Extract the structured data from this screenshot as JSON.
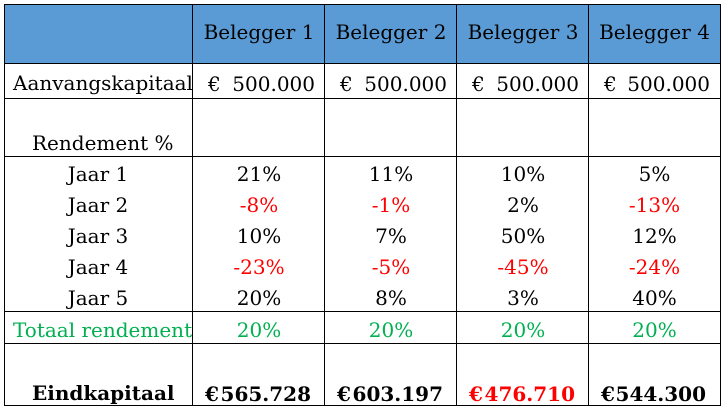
{
  "header": {
    "columns": [
      "Belegger 1",
      "Belegger 2",
      "Belegger 3",
      "Belegger 4"
    ]
  },
  "start_capital": {
    "label": "Aanvangskapitaal",
    "currency": "€",
    "values": [
      "500.000",
      "500.000",
      "500.000",
      "500.000"
    ]
  },
  "returns": {
    "label": "Rendement %",
    "years": [
      {
        "label": "Jaar 1",
        "values": [
          "21%",
          "11%",
          "10%",
          "5%"
        ]
      },
      {
        "label": "Jaar 2",
        "values": [
          "-8%",
          "-1%",
          "2%",
          "-13%"
        ]
      },
      {
        "label": "Jaar 3",
        "values": [
          "10%",
          "7%",
          "50%",
          "12%"
        ]
      },
      {
        "label": "Jaar 4",
        "values": [
          "-23%",
          "-5%",
          "-45%",
          "-24%"
        ]
      },
      {
        "label": "Jaar 5",
        "values": [
          "20%",
          "8%",
          "3%",
          "40%"
        ]
      }
    ]
  },
  "total": {
    "label": "Totaal rendement",
    "values": [
      "20%",
      "20%",
      "20%",
      "20%"
    ]
  },
  "end_capital": {
    "label": "Eindkapitaal",
    "currency": "€",
    "values": [
      "565.728",
      "603.197",
      "476.710",
      "544.300"
    ]
  },
  "colors": {
    "header_bg": "#5b9bd5",
    "negative": "#ff0000",
    "total": "#00b050"
  }
}
